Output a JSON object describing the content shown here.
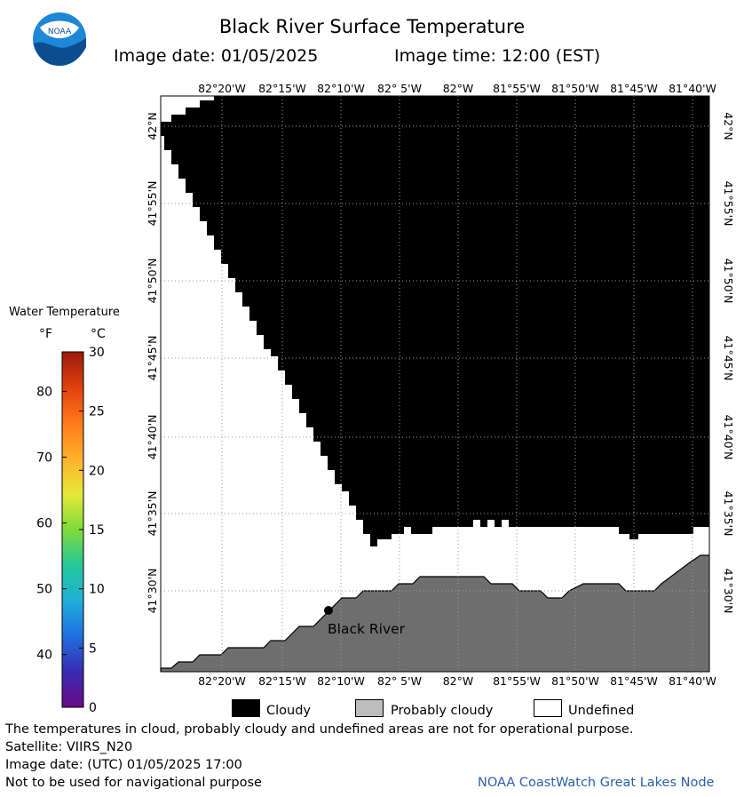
{
  "logo": {
    "text": "NOAA"
  },
  "title": "Black River Surface Temperature",
  "image_date_line": "Image date: 01/05/2025",
  "image_time_line": "Image time: 12:00 (EST)",
  "lon_labels": [
    "82°20'W",
    "82°15'W",
    "82°10'W",
    "82° 5'W",
    "82°W",
    "81°55'W",
    "81°50'W",
    "81°45'W",
    "81°40'W"
  ],
  "lat_labels": [
    "42°N",
    "41°55'N",
    "41°50'N",
    "41°45'N",
    "41°40'N",
    "41°35'N",
    "41°30'N"
  ],
  "place_label": "Black River",
  "colorbar": {
    "title": "Water Temperature",
    "unit_f": "°F",
    "unit_c": "°C",
    "f_ticks": [
      "80",
      "70",
      "60",
      "50",
      "40"
    ],
    "c_ticks": [
      "30",
      "25",
      "20",
      "15",
      "10",
      "5",
      "0"
    ],
    "colors": [
      "#6a0a8a",
      "#3a2bb0",
      "#1f6fe0",
      "#1fb0d8",
      "#26c79a",
      "#7fdb3a",
      "#e6e83a",
      "#ffb02a",
      "#ff7a1a",
      "#e0400f",
      "#9b1a0a"
    ]
  },
  "legend": {
    "cloudy": "Cloudy",
    "probably_cloudy": "Probably cloudy",
    "undefined": "Undefined",
    "cloudy_color": "#000000",
    "probably_cloudy_color": "#bdbdbd",
    "undefined_color": "#ffffff",
    "land_color": "#6e6e6e"
  },
  "footer": {
    "disclaimer": "The temperatures in cloud, probably cloudy and undefined areas are not for operational purpose.",
    "satellite": "Satellite: VIIRS_N20",
    "utc_date": "Image date: (UTC) 01/05/2025  17:00",
    "nav_warning": "Not to be used for navigational purpose",
    "credit": "NOAA CoastWatch Great Lakes Node"
  }
}
